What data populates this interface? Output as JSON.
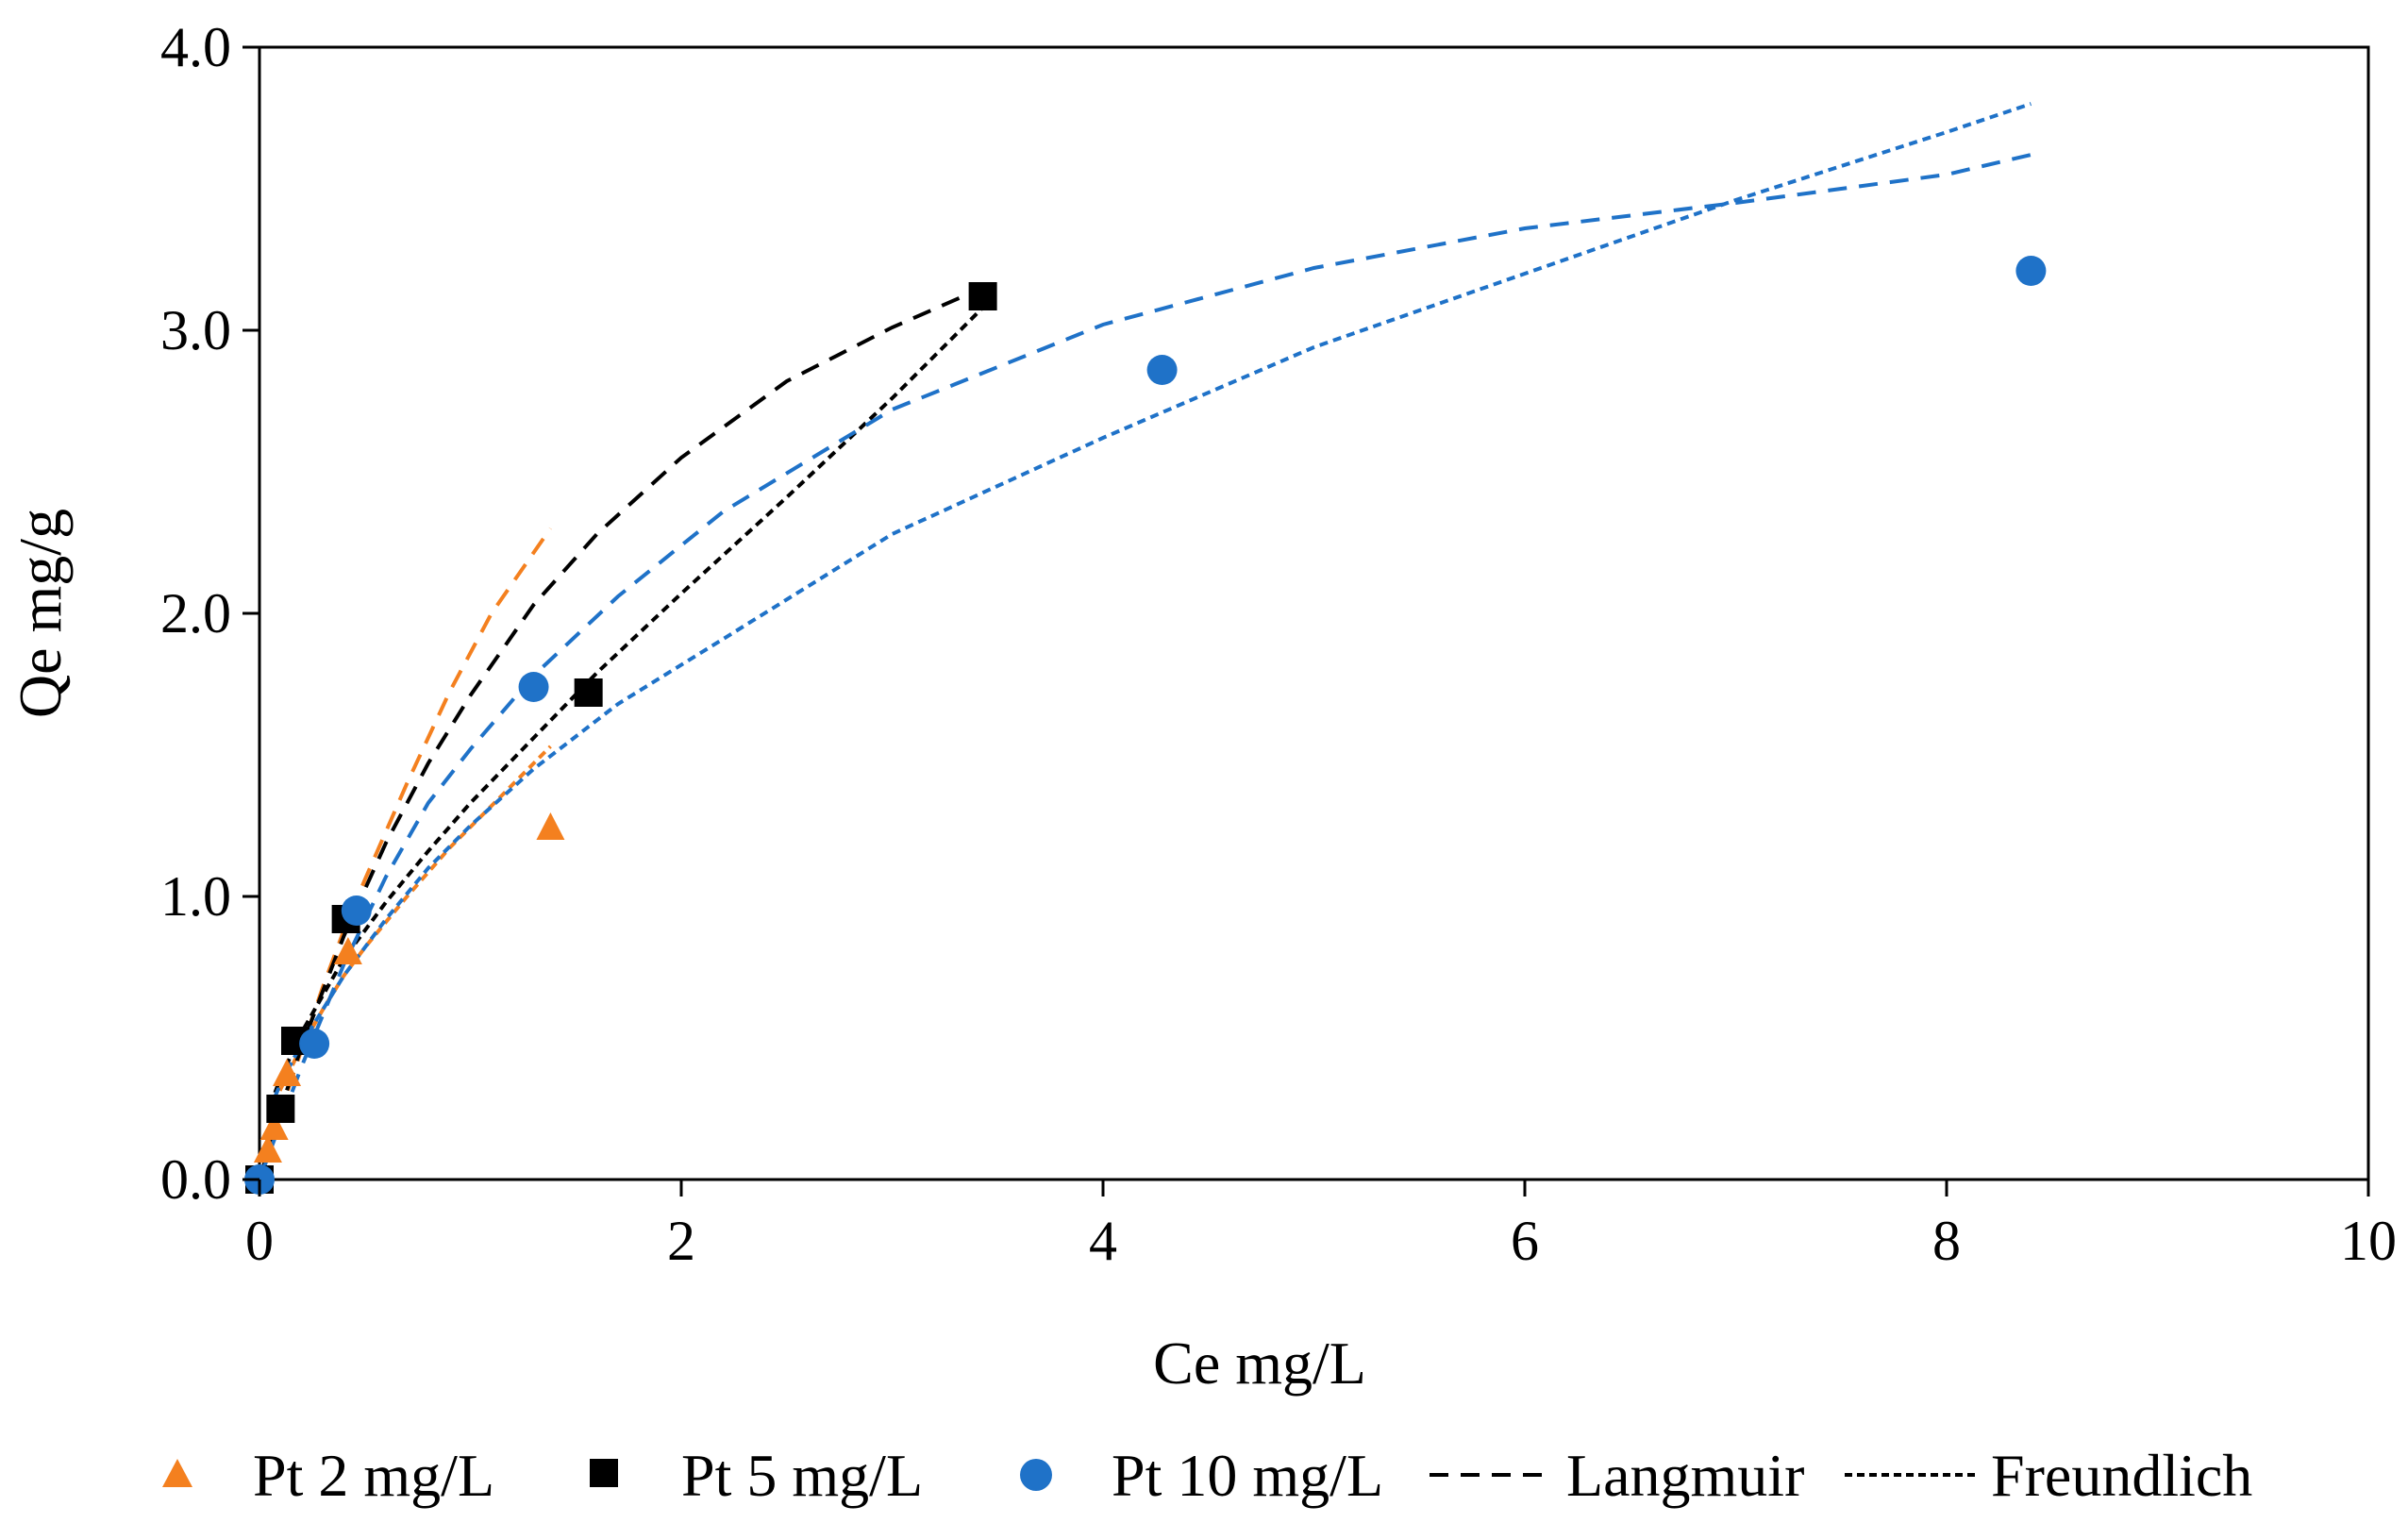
{
  "chart_data": {
    "type": "scatter",
    "title": "",
    "xlabel": "Ce mg/L",
    "ylabel": "Qe mg/g",
    "xlim": [
      0,
      10
    ],
    "ylim": [
      0,
      4
    ],
    "xticks": [
      0,
      2,
      4,
      6,
      8,
      10
    ],
    "xtick_labels": [
      "0",
      "2",
      "4",
      "6",
      "8",
      "10"
    ],
    "yticks": [
      0,
      1,
      2,
      3,
      4
    ],
    "ytick_labels": [
      "0.0",
      "1.0",
      "2.0",
      "3.0",
      "4.0"
    ],
    "grid": false,
    "legend_position": "bottom",
    "legend": [
      {
        "label": "Pt 2 mg/L",
        "marker": "triangle",
        "color": "#F4801F"
      },
      {
        "label": "Pt 5 mg/L",
        "marker": "square",
        "color": "#000000"
      },
      {
        "label": "Pt 10 mg/L",
        "marker": "circle",
        "color": "#1F72C8"
      },
      {
        "label": "Langmuir",
        "line": "long-dash",
        "color": "#000000"
      },
      {
        "label": "Freundlich",
        "line": "short-dash",
        "color": "#000000"
      }
    ],
    "series": [
      {
        "name": "Pt 2 mg/L",
        "marker": "triangle",
        "color": "#F4801F",
        "x": [
          0.0,
          0.04,
          0.07,
          0.13,
          0.42,
          1.38
        ],
        "y": [
          0.0,
          0.1,
          0.18,
          0.37,
          0.8,
          1.24
        ]
      },
      {
        "name": "Pt 5 mg/L",
        "marker": "square",
        "color": "#000000",
        "x": [
          0.0,
          0.1,
          0.17,
          0.41,
          1.56,
          3.43
        ],
        "y": [
          0.0,
          0.25,
          0.49,
          0.92,
          1.72,
          3.12
        ]
      },
      {
        "name": "Pt 10 mg/L",
        "marker": "circle",
        "color": "#1F72C8",
        "x": [
          0.0,
          0.26,
          0.46,
          1.3,
          4.28,
          8.4
        ],
        "y": [
          0.0,
          0.48,
          0.95,
          1.74,
          2.86,
          3.21
        ]
      }
    ],
    "fits": [
      {
        "name": "Langmuir Pt 2 mg/L",
        "model": "Langmuir",
        "color": "#F4801F",
        "dash": "long",
        "x": [
          0,
          0.05,
          0.1,
          0.2,
          0.3,
          0.4,
          0.5,
          0.7,
          0.9,
          1.1,
          1.38
        ],
        "y": [
          0,
          0.12,
          0.24,
          0.46,
          0.68,
          0.88,
          1.06,
          1.4,
          1.72,
          2.0,
          2.3
        ]
      },
      {
        "name": "Freundlich Pt 2 mg/L",
        "model": "Freundlich",
        "color": "#F4801F",
        "dash": "short",
        "x": [
          0.05,
          0.1,
          0.2,
          0.3,
          0.4,
          0.5,
          0.7,
          0.9,
          1.1,
          1.38
        ],
        "y": [
          0.22,
          0.32,
          0.47,
          0.6,
          0.72,
          0.82,
          1.0,
          1.17,
          1.32,
          1.53
        ]
      },
      {
        "name": "Langmuir Pt 5 mg/L",
        "model": "Langmuir",
        "color": "#000000",
        "dash": "long",
        "x": [
          0,
          0.1,
          0.2,
          0.4,
          0.6,
          0.8,
          1.0,
          1.3,
          1.6,
          2.0,
          2.5,
          3.0,
          3.43
        ],
        "y": [
          0,
          0.25,
          0.47,
          0.86,
          1.19,
          1.47,
          1.71,
          2.03,
          2.28,
          2.55,
          2.82,
          3.01,
          3.15
        ]
      },
      {
        "name": "Freundlich Pt 5 mg/L",
        "model": "Freundlich",
        "color": "#000000",
        "dash": "short",
        "x": [
          0.05,
          0.1,
          0.2,
          0.4,
          0.6,
          0.8,
          1.0,
          1.3,
          1.6,
          2.0,
          2.5,
          3.0,
          3.43
        ],
        "y": [
          0.26,
          0.36,
          0.52,
          0.78,
          0.98,
          1.16,
          1.33,
          1.56,
          1.79,
          2.07,
          2.41,
          2.76,
          3.08
        ]
      },
      {
        "name": "Langmuir Pt 10 mg/L",
        "model": "Langmuir",
        "color": "#1F72C8",
        "dash": "long",
        "x": [
          0,
          0.2,
          0.4,
          0.6,
          0.8,
          1.0,
          1.3,
          1.7,
          2.2,
          3.0,
          4.0,
          5.0,
          6.0,
          7.0,
          7.5,
          8.0,
          8.4
        ],
        "y": [
          0,
          0.4,
          0.76,
          1.07,
          1.33,
          1.52,
          1.78,
          2.06,
          2.36,
          2.72,
          3.02,
          3.22,
          3.36,
          3.45,
          3.5,
          3.55,
          3.62
        ]
      },
      {
        "name": "Freundlich Pt 10 mg/L",
        "model": "Freundlich",
        "color": "#1F72C8",
        "dash": "short",
        "x": [
          0.05,
          0.1,
          0.2,
          0.4,
          0.6,
          0.8,
          1.0,
          1.3,
          1.7,
          2.2,
          3.0,
          4.0,
          5.0,
          6.0,
          7.0,
          8.0,
          8.4
        ],
        "y": [
          0.25,
          0.34,
          0.48,
          0.72,
          0.92,
          1.1,
          1.25,
          1.45,
          1.68,
          1.91,
          2.28,
          2.62,
          2.94,
          3.2,
          3.46,
          3.7,
          3.8
        ]
      }
    ]
  }
}
